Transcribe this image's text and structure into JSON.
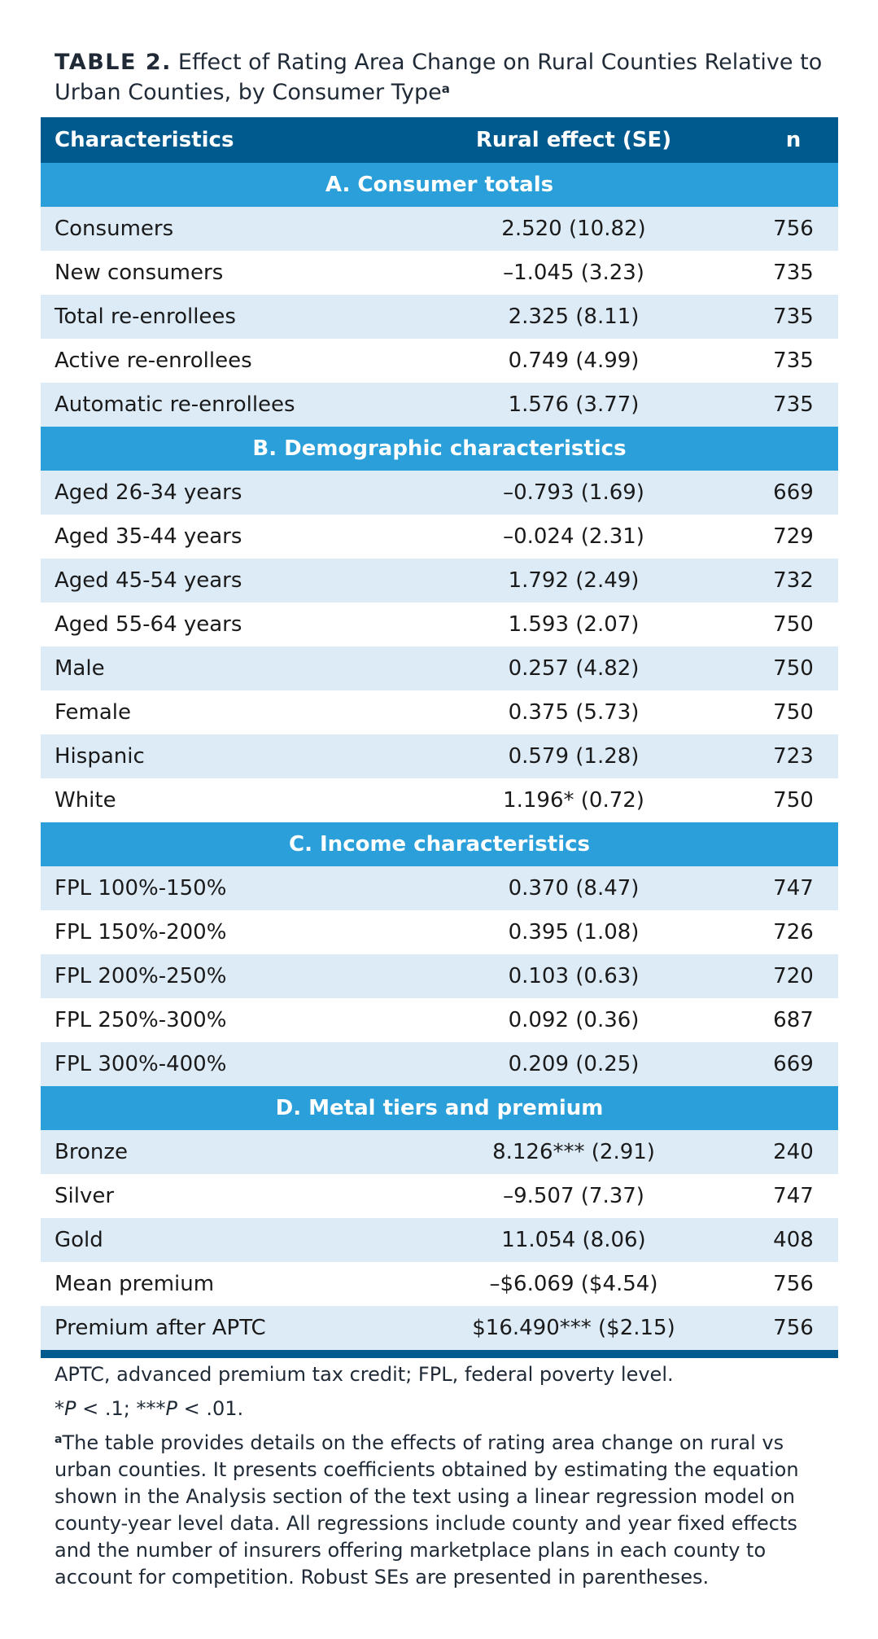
{
  "caption": {
    "label": "TABLE 2.",
    "title": "Effect of Rating Area Change on Rural Counties Relative to Urban Counties, by Consumer Type",
    "footnote_marker": "a"
  },
  "table": {
    "headers": [
      "Characteristics",
      "Rural effect (SE)",
      "n"
    ],
    "sections": [
      {
        "title": "A. Consumer totals",
        "rows": [
          [
            "Consumers",
            "2.520 (10.82)",
            "756"
          ],
          [
            "New consumers",
            "–1.045 (3.23)",
            "735"
          ],
          [
            "Total re-enrollees",
            "2.325 (8.11)",
            "735"
          ],
          [
            "Active re-enrollees",
            "0.749 (4.99)",
            "735"
          ],
          [
            "Automatic re-enrollees",
            "1.576 (3.77)",
            "735"
          ]
        ]
      },
      {
        "title": "B. Demographic characteristics",
        "rows": [
          [
            "Aged 26-34 years",
            "–0.793 (1.69)",
            "669"
          ],
          [
            "Aged 35-44 years",
            "–0.024 (2.31)",
            "729"
          ],
          [
            "Aged 45-54 years",
            "1.792 (2.49)",
            "732"
          ],
          [
            "Aged 55-64 years",
            "1.593 (2.07)",
            "750"
          ],
          [
            "Male",
            "0.257 (4.82)",
            "750"
          ],
          [
            "Female",
            "0.375 (5.73)",
            "750"
          ],
          [
            "Hispanic",
            "0.579 (1.28)",
            "723"
          ],
          [
            "White",
            "1.196* (0.72)",
            "750"
          ]
        ]
      },
      {
        "title": "C. Income characteristics",
        "rows": [
          [
            "FPL 100%-150%",
            "0.370 (8.47)",
            "747"
          ],
          [
            "FPL 150%-200%",
            "0.395 (1.08)",
            "726"
          ],
          [
            "FPL 200%-250%",
            "0.103 (0.63)",
            "720"
          ],
          [
            "FPL 250%-300%",
            "0.092 (0.36)",
            "687"
          ],
          [
            "FPL 300%-400%",
            "0.209 (0.25)",
            "669"
          ]
        ]
      },
      {
        "title": "D. Metal tiers and premium",
        "rows": [
          [
            "Bronze",
            "8.126*** (2.91)",
            "240"
          ],
          [
            "Silver",
            "–9.507 (7.37)",
            "747"
          ],
          [
            "Gold",
            "11.054 (8.06)",
            "408"
          ],
          [
            "Mean premium",
            "–$6.069 ($4.54)",
            "756"
          ],
          [
            "Premium after APTC",
            "$16.490*** ($2.15)",
            "756"
          ]
        ]
      }
    ]
  },
  "notes": {
    "abbreviations": "APTC, advanced premium tax credit; FPL, federal poverty level.",
    "significance": "*P < .1; ***P < .01.",
    "footnote_marker": "a",
    "footnote": "The table provides details on the effects of rating area change on rural vs urban counties. It presents coefficients obtained by estimating the equation shown in the Analysis section of the text using a linear regression model on county-year level data. All regressions include county and year fixed effects and the number of insurers offering marketplace plans in each county to account for competition. Robust SEs are presented in parentheses."
  },
  "colors": {
    "header_bg": "#005a8e",
    "section_bg": "#2a9fd9",
    "shade_bg": "#ddebf7"
  }
}
